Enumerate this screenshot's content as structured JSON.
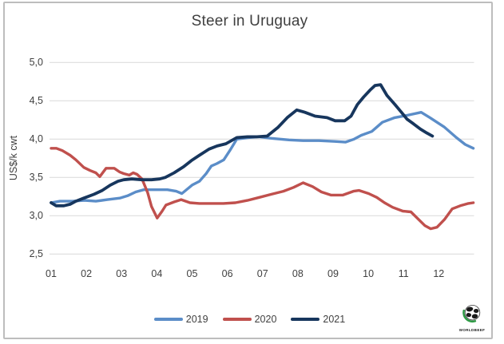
{
  "chart_data": {
    "type": "line",
    "title": "Steer in Uruguay",
    "ylabel": "US$/k cwt",
    "y_axis": {
      "min": 2.5,
      "max": 5.0,
      "tick_step": 0.5,
      "tick_labels": [
        "5,0",
        "4,5",
        "4,0",
        "3,5",
        "3,0",
        "2,5"
      ],
      "tick_values": [
        5.0,
        4.5,
        4.0,
        3.5,
        3.0,
        2.5
      ],
      "decimal_style": "comma"
    },
    "x_axis": {
      "labels": [
        "01",
        "02",
        "03",
        "04",
        "05",
        "06",
        "07",
        "08",
        "09",
        "10",
        "11",
        "12"
      ],
      "unit": "month"
    },
    "grid": "horizontal",
    "gridline_color": "#d9d9d9",
    "legend_position": "bottom",
    "series": [
      {
        "name": "2019",
        "color": "#5b8dc8",
        "points": [
          [
            1,
            3.17
          ],
          [
            1.25,
            3.19
          ],
          [
            1.6,
            3.19
          ],
          [
            1.95,
            3.2
          ],
          [
            2.27,
            3.19
          ],
          [
            2.6,
            3.21
          ],
          [
            2.95,
            3.23
          ],
          [
            3.17,
            3.26
          ],
          [
            3.4,
            3.31
          ],
          [
            3.63,
            3.34
          ],
          [
            3.95,
            3.34
          ],
          [
            4.3,
            3.34
          ],
          [
            4.55,
            3.32
          ],
          [
            4.71,
            3.29
          ],
          [
            5,
            3.4
          ],
          [
            5.21,
            3.45
          ],
          [
            5.4,
            3.55
          ],
          [
            5.55,
            3.65
          ],
          [
            5.7,
            3.68
          ],
          [
            5.9,
            3.73
          ],
          [
            6.07,
            3.85
          ],
          [
            6.27,
            4.0
          ],
          [
            6.6,
            4.02
          ],
          [
            6.9,
            4.03
          ],
          [
            7.25,
            4.01
          ],
          [
            7.75,
            3.99
          ],
          [
            8.15,
            3.98
          ],
          [
            8.6,
            3.98
          ],
          [
            9.05,
            3.97
          ],
          [
            9.35,
            3.96
          ],
          [
            9.6,
            4.0
          ],
          [
            9.8,
            4.05
          ],
          [
            10.1,
            4.1
          ],
          [
            10.4,
            4.22
          ],
          [
            10.75,
            4.28
          ],
          [
            11.1,
            4.31
          ],
          [
            11.5,
            4.35
          ],
          [
            11.75,
            4.28
          ],
          [
            12.15,
            4.16
          ],
          [
            12.5,
            4.02
          ],
          [
            12.75,
            3.93
          ],
          [
            12.98,
            3.88
          ]
        ]
      },
      {
        "name": "2020",
        "color": "#c0504d",
        "points": [
          [
            1,
            3.88
          ],
          [
            1.15,
            3.88
          ],
          [
            1.32,
            3.85
          ],
          [
            1.54,
            3.79
          ],
          [
            1.7,
            3.73
          ],
          [
            1.93,
            3.63
          ],
          [
            2.11,
            3.59
          ],
          [
            2.27,
            3.56
          ],
          [
            2.38,
            3.51
          ],
          [
            2.56,
            3.62
          ],
          [
            2.79,
            3.62
          ],
          [
            2.95,
            3.57
          ],
          [
            3.06,
            3.55
          ],
          [
            3.22,
            3.53
          ],
          [
            3.33,
            3.56
          ],
          [
            3.44,
            3.54
          ],
          [
            3.58,
            3.48
          ],
          [
            3.74,
            3.3
          ],
          [
            3.85,
            3.12
          ],
          [
            4.01,
            2.97
          ],
          [
            4.15,
            3.06
          ],
          [
            4.26,
            3.14
          ],
          [
            4.49,
            3.18
          ],
          [
            4.69,
            3.21
          ],
          [
            4.94,
            3.17
          ],
          [
            5.21,
            3.16
          ],
          [
            5.55,
            3.16
          ],
          [
            5.89,
            3.16
          ],
          [
            6.23,
            3.17
          ],
          [
            6.57,
            3.2
          ],
          [
            6.91,
            3.24
          ],
          [
            7.25,
            3.28
          ],
          [
            7.59,
            3.32
          ],
          [
            7.88,
            3.37
          ],
          [
            8.15,
            3.43
          ],
          [
            8.42,
            3.38
          ],
          [
            8.67,
            3.31
          ],
          [
            8.94,
            3.27
          ],
          [
            9.28,
            3.27
          ],
          [
            9.58,
            3.32
          ],
          [
            9.74,
            3.33
          ],
          [
            10.01,
            3.29
          ],
          [
            10.24,
            3.24
          ],
          [
            10.46,
            3.17
          ],
          [
            10.69,
            3.11
          ],
          [
            10.98,
            3.06
          ],
          [
            11.21,
            3.05
          ],
          [
            11.43,
            2.95
          ],
          [
            11.61,
            2.87
          ],
          [
            11.77,
            2.83
          ],
          [
            11.95,
            2.85
          ],
          [
            12.16,
            2.95
          ],
          [
            12.38,
            3.09
          ],
          [
            12.61,
            3.13
          ],
          [
            12.84,
            3.16
          ],
          [
            12.98,
            3.17
          ]
        ]
      },
      {
        "name": "2021",
        "color": "#17365d",
        "points": [
          [
            1,
            3.17
          ],
          [
            1.14,
            3.13
          ],
          [
            1.36,
            3.13
          ],
          [
            1.54,
            3.15
          ],
          [
            1.7,
            3.19
          ],
          [
            1.93,
            3.23
          ],
          [
            2.22,
            3.28
          ],
          [
            2.45,
            3.33
          ],
          [
            2.68,
            3.4
          ],
          [
            2.9,
            3.45
          ],
          [
            3.06,
            3.47
          ],
          [
            3.29,
            3.48
          ],
          [
            3.58,
            3.47
          ],
          [
            3.85,
            3.47
          ],
          [
            4.08,
            3.48
          ],
          [
            4.24,
            3.5
          ],
          [
            4.49,
            3.56
          ],
          [
            4.76,
            3.64
          ],
          [
            4.98,
            3.72
          ],
          [
            5.21,
            3.79
          ],
          [
            5.48,
            3.87
          ],
          [
            5.71,
            3.91
          ],
          [
            5.96,
            3.94
          ],
          [
            6.27,
            4.02
          ],
          [
            6.57,
            4.03
          ],
          [
            6.84,
            4.03
          ],
          [
            7.13,
            4.04
          ],
          [
            7.43,
            4.15
          ],
          [
            7.7,
            4.28
          ],
          [
            7.97,
            4.38
          ],
          [
            8.2,
            4.35
          ],
          [
            8.49,
            4.3
          ],
          [
            8.83,
            4.28
          ],
          [
            9.06,
            4.24
          ],
          [
            9.33,
            4.24
          ],
          [
            9.51,
            4.3
          ],
          [
            9.69,
            4.45
          ],
          [
            9.87,
            4.55
          ],
          [
            10.05,
            4.64
          ],
          [
            10.19,
            4.7
          ],
          [
            10.35,
            4.71
          ],
          [
            10.53,
            4.57
          ],
          [
            10.76,
            4.45
          ],
          [
            10.94,
            4.35
          ],
          [
            11.1,
            4.26
          ],
          [
            11.28,
            4.2
          ],
          [
            11.48,
            4.13
          ],
          [
            11.66,
            4.08
          ],
          [
            11.82,
            4.04
          ]
        ]
      }
    ]
  },
  "legend": {
    "items": [
      {
        "label": "2019",
        "color": "#5b8dc8"
      },
      {
        "label": "2020",
        "color": "#c0504d"
      },
      {
        "label": "2021",
        "color": "#17365d"
      }
    ]
  },
  "logo": {
    "text": "WORLDBEEF"
  }
}
